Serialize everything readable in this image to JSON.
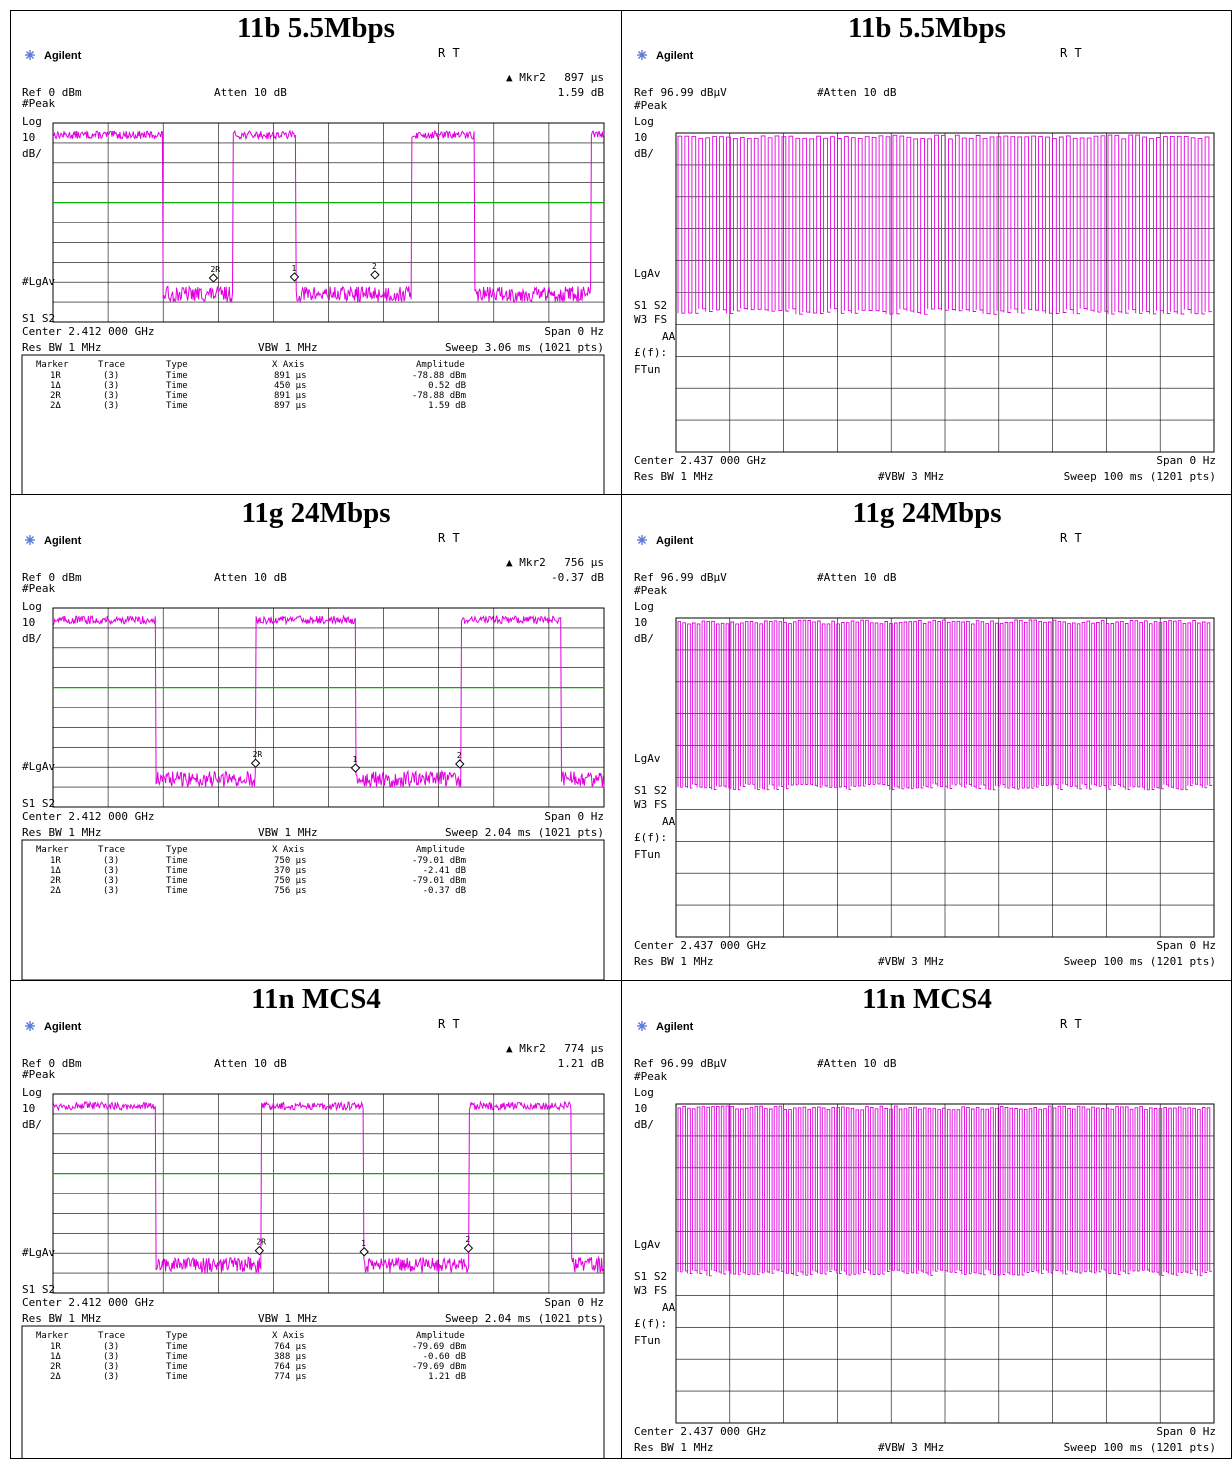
{
  "panels": [
    {
      "id": "p1",
      "title": "11b 5.5Mbps",
      "brand": "Agilent",
      "rt": "R   T",
      "marker_readout": {
        "label": "▲ Mkr2",
        "x_value": "897 µs",
        "y_value": "1.59 dB"
      },
      "ref": "Ref 0 dBm",
      "atten": "Atten 10 dB",
      "left_labels": [
        "#Peak",
        "Log",
        "10",
        "dB/"
      ],
      "lgav": "#LgAv",
      "s1s2": "S1  S2",
      "center": "Center 2.412 000 GHz",
      "span": "Span 0 Hz",
      "rbw": "Res BW 1 MHz",
      "vbw": "VBW 1 MHz",
      "sweep": "Sweep 3.06 ms (1021 pts)",
      "table_headers": [
        "Marker",
        "Trace",
        "Type",
        "X Axis",
        "Amplitude"
      ],
      "table_rows": [
        [
          "1R",
          "(3)",
          "Time",
          "891 µs",
          "-78.88 dBm"
        ],
        [
          "1Δ",
          "(3)",
          "Time",
          "450 µs",
          "0.52 dB"
        ],
        [
          "2R",
          "(3)",
          "Time",
          "891 µs",
          "-78.88 dBm"
        ],
        [
          "2Δ",
          "(3)",
          "Time",
          "897 µs",
          "1.59 dB"
        ]
      ],
      "colors": {
        "trace": "#e000e0",
        "threshold": "#00b000",
        "grid": "#000000"
      }
    },
    {
      "id": "p2",
      "title": "11b 5.5Mbps",
      "brand": "Agilent",
      "rt": "R   T",
      "ref": "Ref 96.99 dBµV",
      "atten": "#Atten 10 dB",
      "left_labels": [
        "#Peak",
        "Log",
        "10",
        "dB/"
      ],
      "lgav": "LgAv",
      "s1s2": "S1  S2",
      "w3fs": "W3  FS",
      "aa": "AA",
      "ff": "£(f):",
      "ftun": "FTun",
      "center": "Center 2.437 000 GHz",
      "span": "Span 0 Hz",
      "rbw": "Res BW 1 MHz",
      "vbw": "#VBW 3 MHz",
      "sweep": "Sweep 100 ms (1201 pts)",
      "colors": {
        "trace": "#e000e0"
      }
    },
    {
      "id": "p3",
      "title": "11g 24Mbps",
      "brand": "Agilent",
      "rt": "R   T",
      "marker_readout": {
        "label": "▲ Mkr2",
        "x_value": "756 µs",
        "y_value": "-0.37 dB"
      },
      "ref": "Ref 0 dBm",
      "atten": "Atten 10 dB",
      "left_labels": [
        "#Peak",
        "Log",
        "10",
        "dB/"
      ],
      "lgav": "#LgAv",
      "s1s2": "S1  S2",
      "center": "Center 2.412 000 GHz",
      "span": "Span 0 Hz",
      "rbw": "Res BW 1 MHz",
      "vbw": "VBW 1 MHz",
      "sweep": "Sweep 2.04 ms (1021 pts)",
      "table_headers": [
        "Marker",
        "Trace",
        "Type",
        "X Axis",
        "Amplitude"
      ],
      "table_rows": [
        [
          "1R",
          "(3)",
          "Time",
          "750 µs",
          "-79.01 dBm"
        ],
        [
          "1Δ",
          "(3)",
          "Time",
          "370 µs",
          "-2.41 dB"
        ],
        [
          "2R",
          "(3)",
          "Time",
          "750 µs",
          "-79.01 dBm"
        ],
        [
          "2Δ",
          "(3)",
          "Time",
          "756 µs",
          "-0.37 dB"
        ]
      ],
      "colors": {
        "trace": "#e000e0",
        "threshold": "#00b000",
        "grid": "#000000"
      }
    },
    {
      "id": "p4",
      "title": "11g 24Mbps",
      "brand": "Agilent",
      "rt": "R   T",
      "ref": "Ref 96.99 dBµV",
      "atten": "#Atten 10 dB",
      "left_labels": [
        "#Peak",
        "Log",
        "10",
        "dB/"
      ],
      "lgav": "LgAv",
      "s1s2": "S1  S2",
      "w3fs": "W3  FS",
      "aa": "AA",
      "ff": "£(f):",
      "ftun": "FTun",
      "center": "Center 2.437 000 GHz",
      "span": "Span 0 Hz",
      "rbw": "Res BW 1 MHz",
      "vbw": "#VBW 3 MHz",
      "sweep": "Sweep 100 ms (1201 pts)",
      "colors": {
        "trace": "#e000e0"
      }
    },
    {
      "id": "p5",
      "title": "11n MCS4",
      "brand": "Agilent",
      "rt": "R   T",
      "marker_readout": {
        "label": "▲ Mkr2",
        "x_value": "774 µs",
        "y_value": "1.21 dB"
      },
      "ref": "Ref 0 dBm",
      "atten": "Atten 10 dB",
      "left_labels": [
        "#Peak",
        "Log",
        "10",
        "dB/"
      ],
      "lgav": "#LgAv",
      "s1s2": "S1  S2",
      "center": "Center 2.412 000 GHz",
      "span": "Span 0 Hz",
      "rbw": "Res BW 1 MHz",
      "vbw": "VBW 1 MHz",
      "sweep": "Sweep 2.04 ms (1021 pts)",
      "table_headers": [
        "Marker",
        "Trace",
        "Type",
        "X Axis",
        "Amplitude"
      ],
      "table_rows": [
        [
          "1R",
          "(3)",
          "Time",
          "764 µs",
          "-79.69 dBm"
        ],
        [
          "1Δ",
          "(3)",
          "Time",
          "388 µs",
          "-0.60 dB"
        ],
        [
          "2R",
          "(3)",
          "Time",
          "764 µs",
          "-79.69 dBm"
        ],
        [
          "2Δ",
          "(3)",
          "Time",
          "774 µs",
          "1.21 dB"
        ]
      ],
      "colors": {
        "trace": "#e000e0",
        "threshold": "#00b000",
        "grid": "#000000"
      }
    },
    {
      "id": "p6",
      "title": "11n MCS4",
      "brand": "Agilent",
      "rt": "R   T",
      "ref": "Ref 96.99 dBµV",
      "atten": "#Atten 10 dB",
      "left_labels": [
        "#Peak",
        "Log",
        "10",
        "dB/"
      ],
      "lgav": "LgAv",
      "s1s2": "S1  S2",
      "w3fs": "W3  FS",
      "aa": "AA",
      "ff": "£(f):",
      "ftun": "FTun",
      "center": "Center 2.437 000 GHz",
      "span": "Span 0 Hz",
      "rbw": "Res BW 1 MHz",
      "vbw": "#VBW 3 MHz",
      "sweep": "Sweep 100 ms (1201 pts)",
      "colors": {
        "trace": "#e000e0"
      }
    }
  ],
  "chart_data": [
    {
      "type": "line",
      "panel": "p1",
      "title": "11b 5.5Mbps",
      "x_unit": "ms",
      "xlim": [
        0,
        3.06
      ],
      "y_unit": "dBm",
      "ylim": [
        -100,
        0
      ],
      "bursts": [
        [
          -0.2,
          0.61
        ],
        [
          1.0,
          1.35
        ],
        [
          1.99,
          2.34
        ],
        [
          2.99,
          3.2
        ]
      ],
      "on_level": -6,
      "off_level": -86,
      "threshold": -40,
      "markers": [
        {
          "label": "2R",
          "x": 0.891,
          "y": -78.88
        },
        {
          "label": "1",
          "x": 1.341,
          "y": -78.36
        },
        {
          "label": "2",
          "x": 1.788,
          "y": -77.29
        }
      ]
    },
    {
      "type": "line",
      "panel": "p2",
      "title": "11b 5.5Mbps",
      "x_unit": "ms",
      "xlim": [
        0,
        100
      ],
      "y_unit": "dBµV",
      "ylim": [
        -3.01,
        96.99
      ],
      "period_ms": 1.3,
      "high_level": 96.99,
      "low_level": 42
    },
    {
      "type": "line",
      "panel": "p3",
      "title": "11g 24Mbps",
      "x_unit": "ms",
      "xlim": [
        0,
        2.04
      ],
      "y_unit": "dBm",
      "ylim": [
        -100,
        0
      ],
      "bursts": [
        [
          -0.2,
          0.38
        ],
        [
          0.75,
          1.12
        ],
        [
          1.51,
          1.88
        ]
      ],
      "on_level": -6,
      "off_level": -86,
      "threshold": -40,
      "markers": [
        {
          "label": "2R",
          "x": 0.75,
          "y": -79.01
        },
        {
          "label": "1",
          "x": 1.12,
          "y": -81.42
        },
        {
          "label": "2",
          "x": 1.506,
          "y": -79.38
        }
      ]
    },
    {
      "type": "line",
      "panel": "p4",
      "title": "11g 24Mbps",
      "x_unit": "ms",
      "xlim": [
        0,
        100
      ],
      "y_unit": "dBµV",
      "ylim": [
        -3.01,
        96.99
      ],
      "period_ms": 0.9,
      "high_level": 96.99,
      "low_level": 45
    },
    {
      "type": "line",
      "panel": "p5",
      "title": "11n MCS4",
      "x_unit": "ms",
      "xlim": [
        0,
        2.04
      ],
      "y_unit": "dBm",
      "ylim": [
        -100,
        0
      ],
      "bursts": [
        [
          -0.2,
          0.38
        ],
        [
          0.77,
          1.15
        ],
        [
          1.54,
          1.92
        ]
      ],
      "on_level": -6,
      "off_level": -86,
      "threshold": -40,
      "markers": [
        {
          "label": "2R",
          "x": 0.764,
          "y": -79.69
        },
        {
          "label": "1",
          "x": 1.152,
          "y": -80.29
        },
        {
          "label": "2",
          "x": 1.538,
          "y": -78.48
        }
      ]
    },
    {
      "type": "line",
      "panel": "p6",
      "title": "11n MCS4",
      "x_unit": "ms",
      "xlim": [
        0,
        100
      ],
      "y_unit": "dBµV",
      "ylim": [
        -3.01,
        96.99
      ],
      "period_ms": 0.9,
      "high_level": 96.99,
      "low_level": 45
    }
  ]
}
